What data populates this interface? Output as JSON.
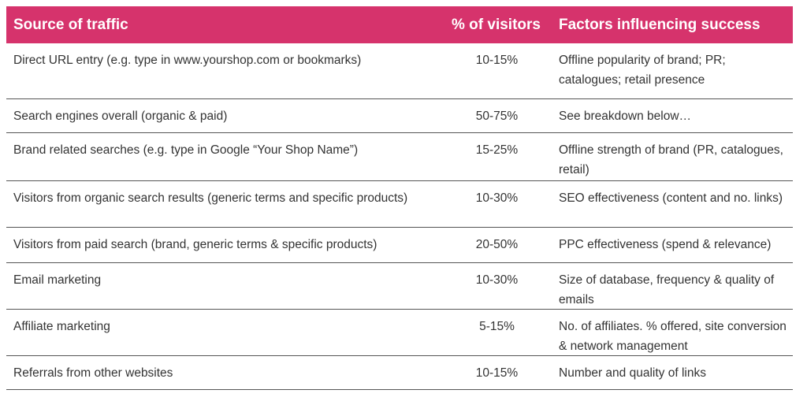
{
  "table": {
    "headers": {
      "source": "Source of traffic",
      "visitors": "% of visitors",
      "factors": "Factors influencing success"
    },
    "rows": [
      {
        "source": "Direct URL entry (e.g. type in www.yourshop.com or bookmarks)",
        "visitors": "10-15%",
        "factors": "Offline popularity of brand; PR; catalogues; retail presence"
      },
      {
        "source": "Search engines overall (organic & paid)",
        "visitors": "50-75%",
        "factors": "See breakdown below…"
      },
      {
        "source": "Brand related searches (e.g. type in Google “Your Shop Name”)",
        "visitors": "15-25%",
        "factors": "Offline strength of brand (PR, catalogues, retail)"
      },
      {
        "source": "Visitors from organic search results (generic terms and specific products)",
        "visitors": "10-30%",
        "factors": "SEO effectiveness (content and no. links)"
      },
      {
        "source": "Visitors from paid search (brand, generic terms & specific products)",
        "visitors": "20-50%",
        "factors": "PPC effectiveness (spend & relevance)"
      },
      {
        "source": "Email marketing",
        "visitors": "10-30%",
        "factors": "Size of database, frequency & quality of emails"
      },
      {
        "source": "Affiliate marketing",
        "visitors": "5-15%",
        "factors": "No. of affiliates. % offered, site conversion & network management"
      },
      {
        "source": "Referrals from other websites",
        "visitors": "10-15%",
        "factors": "Number and quality of links"
      }
    ]
  },
  "colors": {
    "header_bg": "#d6336c",
    "header_text": "#ffffff",
    "body_text": "#333333",
    "rule": "#555555"
  }
}
